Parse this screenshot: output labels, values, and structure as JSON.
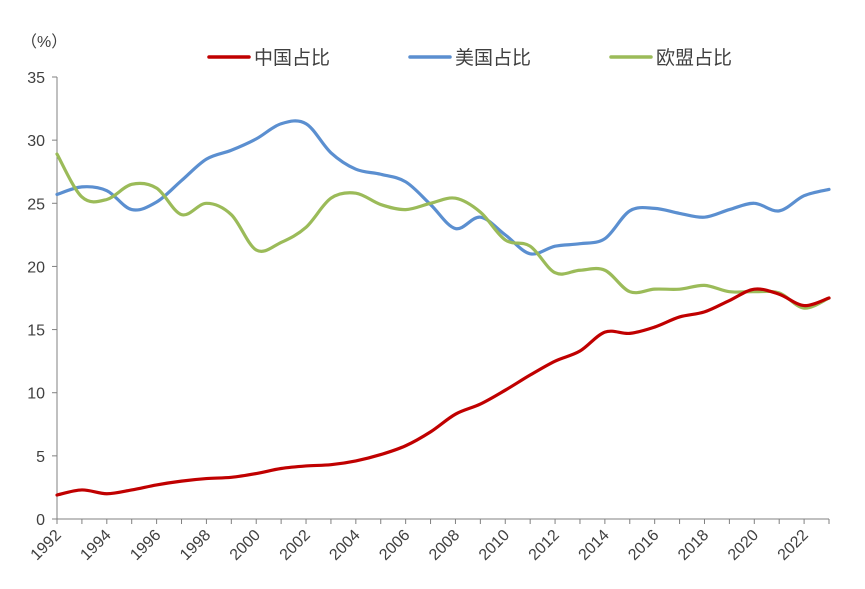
{
  "chart_data": {
    "type": "line",
    "unit_label": "（%）",
    "x": [
      1992,
      1993,
      1994,
      1995,
      1996,
      1997,
      1998,
      1999,
      2000,
      2001,
      2002,
      2003,
      2004,
      2005,
      2006,
      2007,
      2008,
      2009,
      2010,
      2011,
      2012,
      2013,
      2014,
      2015,
      2016,
      2017,
      2018,
      2019,
      2020,
      2021,
      2022,
      2023
    ],
    "x_ticks": [
      "1992",
      "1994",
      "1996",
      "1998",
      "2000",
      "2002",
      "2004",
      "2006",
      "2008",
      "2010",
      "2012",
      "2014",
      "2016",
      "2018",
      "2020",
      "2022"
    ],
    "y_ticks": [
      "0",
      "5",
      "10",
      "15",
      "20",
      "25",
      "30",
      "35"
    ],
    "ylim": [
      0,
      35
    ],
    "xlim": [
      1992,
      2023
    ],
    "grid": false,
    "legend_position": "top",
    "series": [
      {
        "name": "中国占比",
        "color": "#C00000",
        "values": [
          1.9,
          2.3,
          2.0,
          2.3,
          2.7,
          3.0,
          3.2,
          3.3,
          3.6,
          4.0,
          4.2,
          4.3,
          4.6,
          5.1,
          5.8,
          6.9,
          8.3,
          9.1,
          10.2,
          11.4,
          12.5,
          13.3,
          14.8,
          14.7,
          15.2,
          16.0,
          16.4,
          17.3,
          18.2,
          17.8,
          16.9,
          17.5
        ]
      },
      {
        "name": "美国占比",
        "color": "#5B8FD0",
        "values": [
          25.7,
          26.3,
          26.0,
          24.5,
          25.1,
          26.8,
          28.5,
          29.2,
          30.1,
          31.3,
          31.3,
          29.0,
          27.7,
          27.3,
          26.7,
          24.9,
          23.0,
          23.9,
          22.5,
          21.0,
          21.6,
          21.8,
          22.2,
          24.4,
          24.6,
          24.2,
          23.9,
          24.5,
          25.0,
          24.4,
          25.6,
          26.1
        ]
      },
      {
        "name": "欧盟占比",
        "color": "#9BBB59",
        "values": [
          28.9,
          25.5,
          25.3,
          26.5,
          26.2,
          24.1,
          25.0,
          24.1,
          21.3,
          21.9,
          23.1,
          25.4,
          25.8,
          24.9,
          24.5,
          25.0,
          25.4,
          24.3,
          22.1,
          21.6,
          19.5,
          19.7,
          19.7,
          18.0,
          18.2,
          18.2,
          18.5,
          18.0,
          18.0,
          17.9,
          16.7,
          17.5
        ]
      }
    ]
  }
}
